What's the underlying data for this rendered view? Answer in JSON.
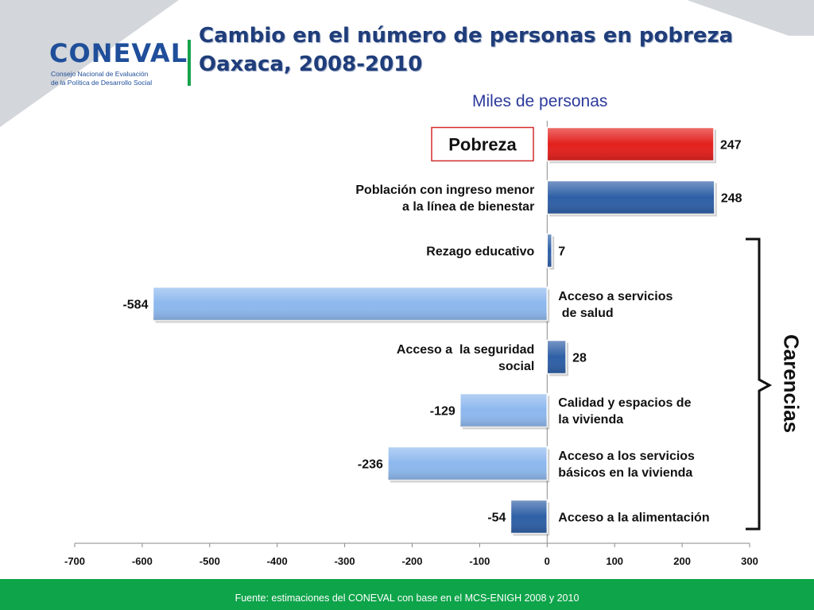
{
  "header": {
    "title_line1": "Cambio en el número de personas en pobreza",
    "title_line2": "Oaxaca, 2008-2010"
  },
  "logo": {
    "name": "CONEVAL",
    "subtitle_line1": "Consejo Nacional de Evaluación",
    "subtitle_line2": "de la Política de Desarrollo Social"
  },
  "colors": {
    "accent_green": "#0ea44a",
    "title_blue": "#1f3d7a",
    "bar_red": "#e3201c",
    "bar_dark_blue": "#2e5fa6",
    "bar_light_blue": "#8db8ee"
  },
  "brace_label": "Carencias",
  "footer": {
    "source": "Fuente: estimaciones del CONEVAL con base en el MCS-ENIGH 2008 y 2010"
  },
  "chart_data": {
    "type": "bar",
    "orientation": "horizontal",
    "subtitle": "Miles de personas",
    "categories": [
      "Pobreza",
      "Población con ingreso menor a la línea de bienestar",
      "Rezago educativo",
      "Acceso a servicios de salud",
      "Acceso a la seguridad social",
      "Calidad y espacios de la vivienda",
      "Acceso a los servicios básicos en la vivienda",
      "Acceso a la alimentación"
    ],
    "category_lines": [
      [
        "Pobreza"
      ],
      [
        "Población con ingreso menor",
        "a la línea de bienestar"
      ],
      [
        "Rezago educativo"
      ],
      [
        "Acceso a servicios",
        " de salud"
      ],
      [
        "Acceso a  la seguridad",
        "social"
      ],
      [
        "Calidad y espacios de",
        "la vivienda"
      ],
      [
        "Acceso a los servicios",
        "básicos en la vivienda"
      ],
      [
        "Acceso a la alimentación"
      ]
    ],
    "values": [
      247,
      248,
      7,
      -584,
      28,
      -129,
      -236,
      -54
    ],
    "value_labels": [
      "247",
      "248",
      "7",
      "-584",
      "28",
      "-129",
      "-236",
      "-54"
    ],
    "bar_colors": [
      "#e3201c",
      "#2e5fa6",
      "#2e5fa6",
      "#8db8ee",
      "#2e5fa6",
      "#8db8ee",
      "#8db8ee",
      "#2e5fa6"
    ],
    "highlighted_category": "Pobreza",
    "xlim": [
      -700,
      300
    ],
    "xticks": [
      "-700",
      "-600",
      "-500",
      "-400",
      "-300",
      "-200",
      "-100",
      "0",
      "100",
      "200",
      "300"
    ],
    "grid": false,
    "legend": "none"
  }
}
